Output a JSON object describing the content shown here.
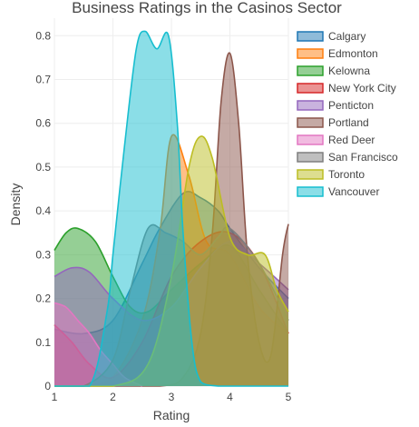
{
  "chart_data": {
    "type": "area",
    "title": "Business Ratings in the Casinos Sector",
    "xlabel": "Rating",
    "ylabel": "Density",
    "xlim": [
      1,
      5
    ],
    "ylim": [
      0,
      0.84
    ],
    "x_ticks": [
      1,
      2,
      3,
      4,
      5
    ],
    "y_ticks": [
      0,
      0.1,
      0.2,
      0.3,
      0.4,
      0.5,
      0.6,
      0.7,
      0.8
    ],
    "grid": true,
    "legend_position": "top-right",
    "series": [
      {
        "name": "Calgary",
        "color": "#1f77b4",
        "x": [
          1,
          1.5,
          2,
          2.5,
          2.8,
          3.2,
          3.5,
          3.8,
          4,
          4.5,
          5
        ],
        "y": [
          0.13,
          0.12,
          0.15,
          0.28,
          0.36,
          0.44,
          0.43,
          0.4,
          0.36,
          0.27,
          0.2
        ]
      },
      {
        "name": "Edmonton",
        "color": "#ff7f0e",
        "x": [
          1,
          1.5,
          2,
          2.5,
          2.8,
          3.0,
          3.3,
          3.6,
          4,
          4.5,
          5
        ],
        "y": [
          0.0,
          0.0,
          0.02,
          0.15,
          0.35,
          0.57,
          0.48,
          0.33,
          0.3,
          0.18,
          0.12
        ]
      },
      {
        "name": "Kelowna",
        "color": "#2ca02c",
        "x": [
          1,
          1.2,
          1.4,
          1.7,
          2.0,
          2.3,
          2.6,
          3.0,
          3.5,
          4,
          4.5,
          5
        ],
        "y": [
          0.31,
          0.35,
          0.36,
          0.33,
          0.25,
          0.18,
          0.17,
          0.22,
          0.28,
          0.32,
          0.22,
          0.12
        ]
      },
      {
        "name": "New York City",
        "color": "#d62728",
        "x": [
          1,
          1.3,
          1.6,
          2.0,
          2.5,
          3.0,
          3.5,
          4,
          4.5,
          5
        ],
        "y": [
          0.14,
          0.1,
          0.05,
          0.02,
          0.1,
          0.25,
          0.33,
          0.35,
          0.28,
          0.12
        ]
      },
      {
        "name": "Penticton",
        "color": "#9467bd",
        "x": [
          1,
          1.3,
          1.6,
          2.0,
          2.5,
          3.0,
          3.5,
          4,
          4.5,
          5
        ],
        "y": [
          0.25,
          0.27,
          0.26,
          0.2,
          0.15,
          0.18,
          0.27,
          0.33,
          0.28,
          0.22
        ]
      },
      {
        "name": "Portland",
        "color": "#8c564b",
        "x": [
          1,
          2.0,
          2.8,
          3.2,
          3.5,
          3.7,
          3.85,
          4.0,
          4.15,
          4.3,
          4.5,
          4.7,
          4.9,
          5
        ],
        "y": [
          0.0,
          0.0,
          0.0,
          0.02,
          0.12,
          0.35,
          0.65,
          0.76,
          0.6,
          0.3,
          0.1,
          0.07,
          0.3,
          0.37
        ]
      },
      {
        "name": "Red Deer",
        "color": "#e377c2",
        "x": [
          1,
          1.2,
          1.4,
          1.6,
          1.8,
          2.0,
          2.2,
          2.5
        ],
        "y": [
          0.19,
          0.18,
          0.15,
          0.12,
          0.08,
          0.05,
          0.02,
          0.0
        ]
      },
      {
        "name": "San Francisco",
        "color": "#7f7f7f",
        "x": [
          1,
          1.5,
          2,
          2.3,
          2.6,
          2.9,
          3.2,
          3.5,
          3.8,
          4,
          4.5,
          5
        ],
        "y": [
          0.0,
          0.0,
          0.06,
          0.22,
          0.36,
          0.35,
          0.33,
          0.3,
          0.34,
          0.36,
          0.28,
          0.15
        ]
      },
      {
        "name": "Toronto",
        "color": "#bcbd22",
        "x": [
          1,
          2.0,
          2.6,
          3.0,
          3.3,
          3.5,
          3.7,
          4.0,
          4.3,
          4.6,
          4.8,
          5
        ],
        "y": [
          0.0,
          0.0,
          0.05,
          0.25,
          0.5,
          0.57,
          0.52,
          0.34,
          0.3,
          0.3,
          0.22,
          0.17
        ]
      },
      {
        "name": "Vancouver",
        "color": "#17becf",
        "x": [
          1,
          1.6,
          1.9,
          2.0,
          2.2,
          2.4,
          2.55,
          2.75,
          2.95,
          3.1,
          3.2,
          3.35,
          3.5,
          3.8,
          4,
          5
        ],
        "y": [
          0.0,
          0.0,
          0.17,
          0.3,
          0.55,
          0.77,
          0.81,
          0.77,
          0.8,
          0.6,
          0.35,
          0.1,
          0.01,
          0.0,
          0.0,
          0.0
        ]
      }
    ]
  }
}
